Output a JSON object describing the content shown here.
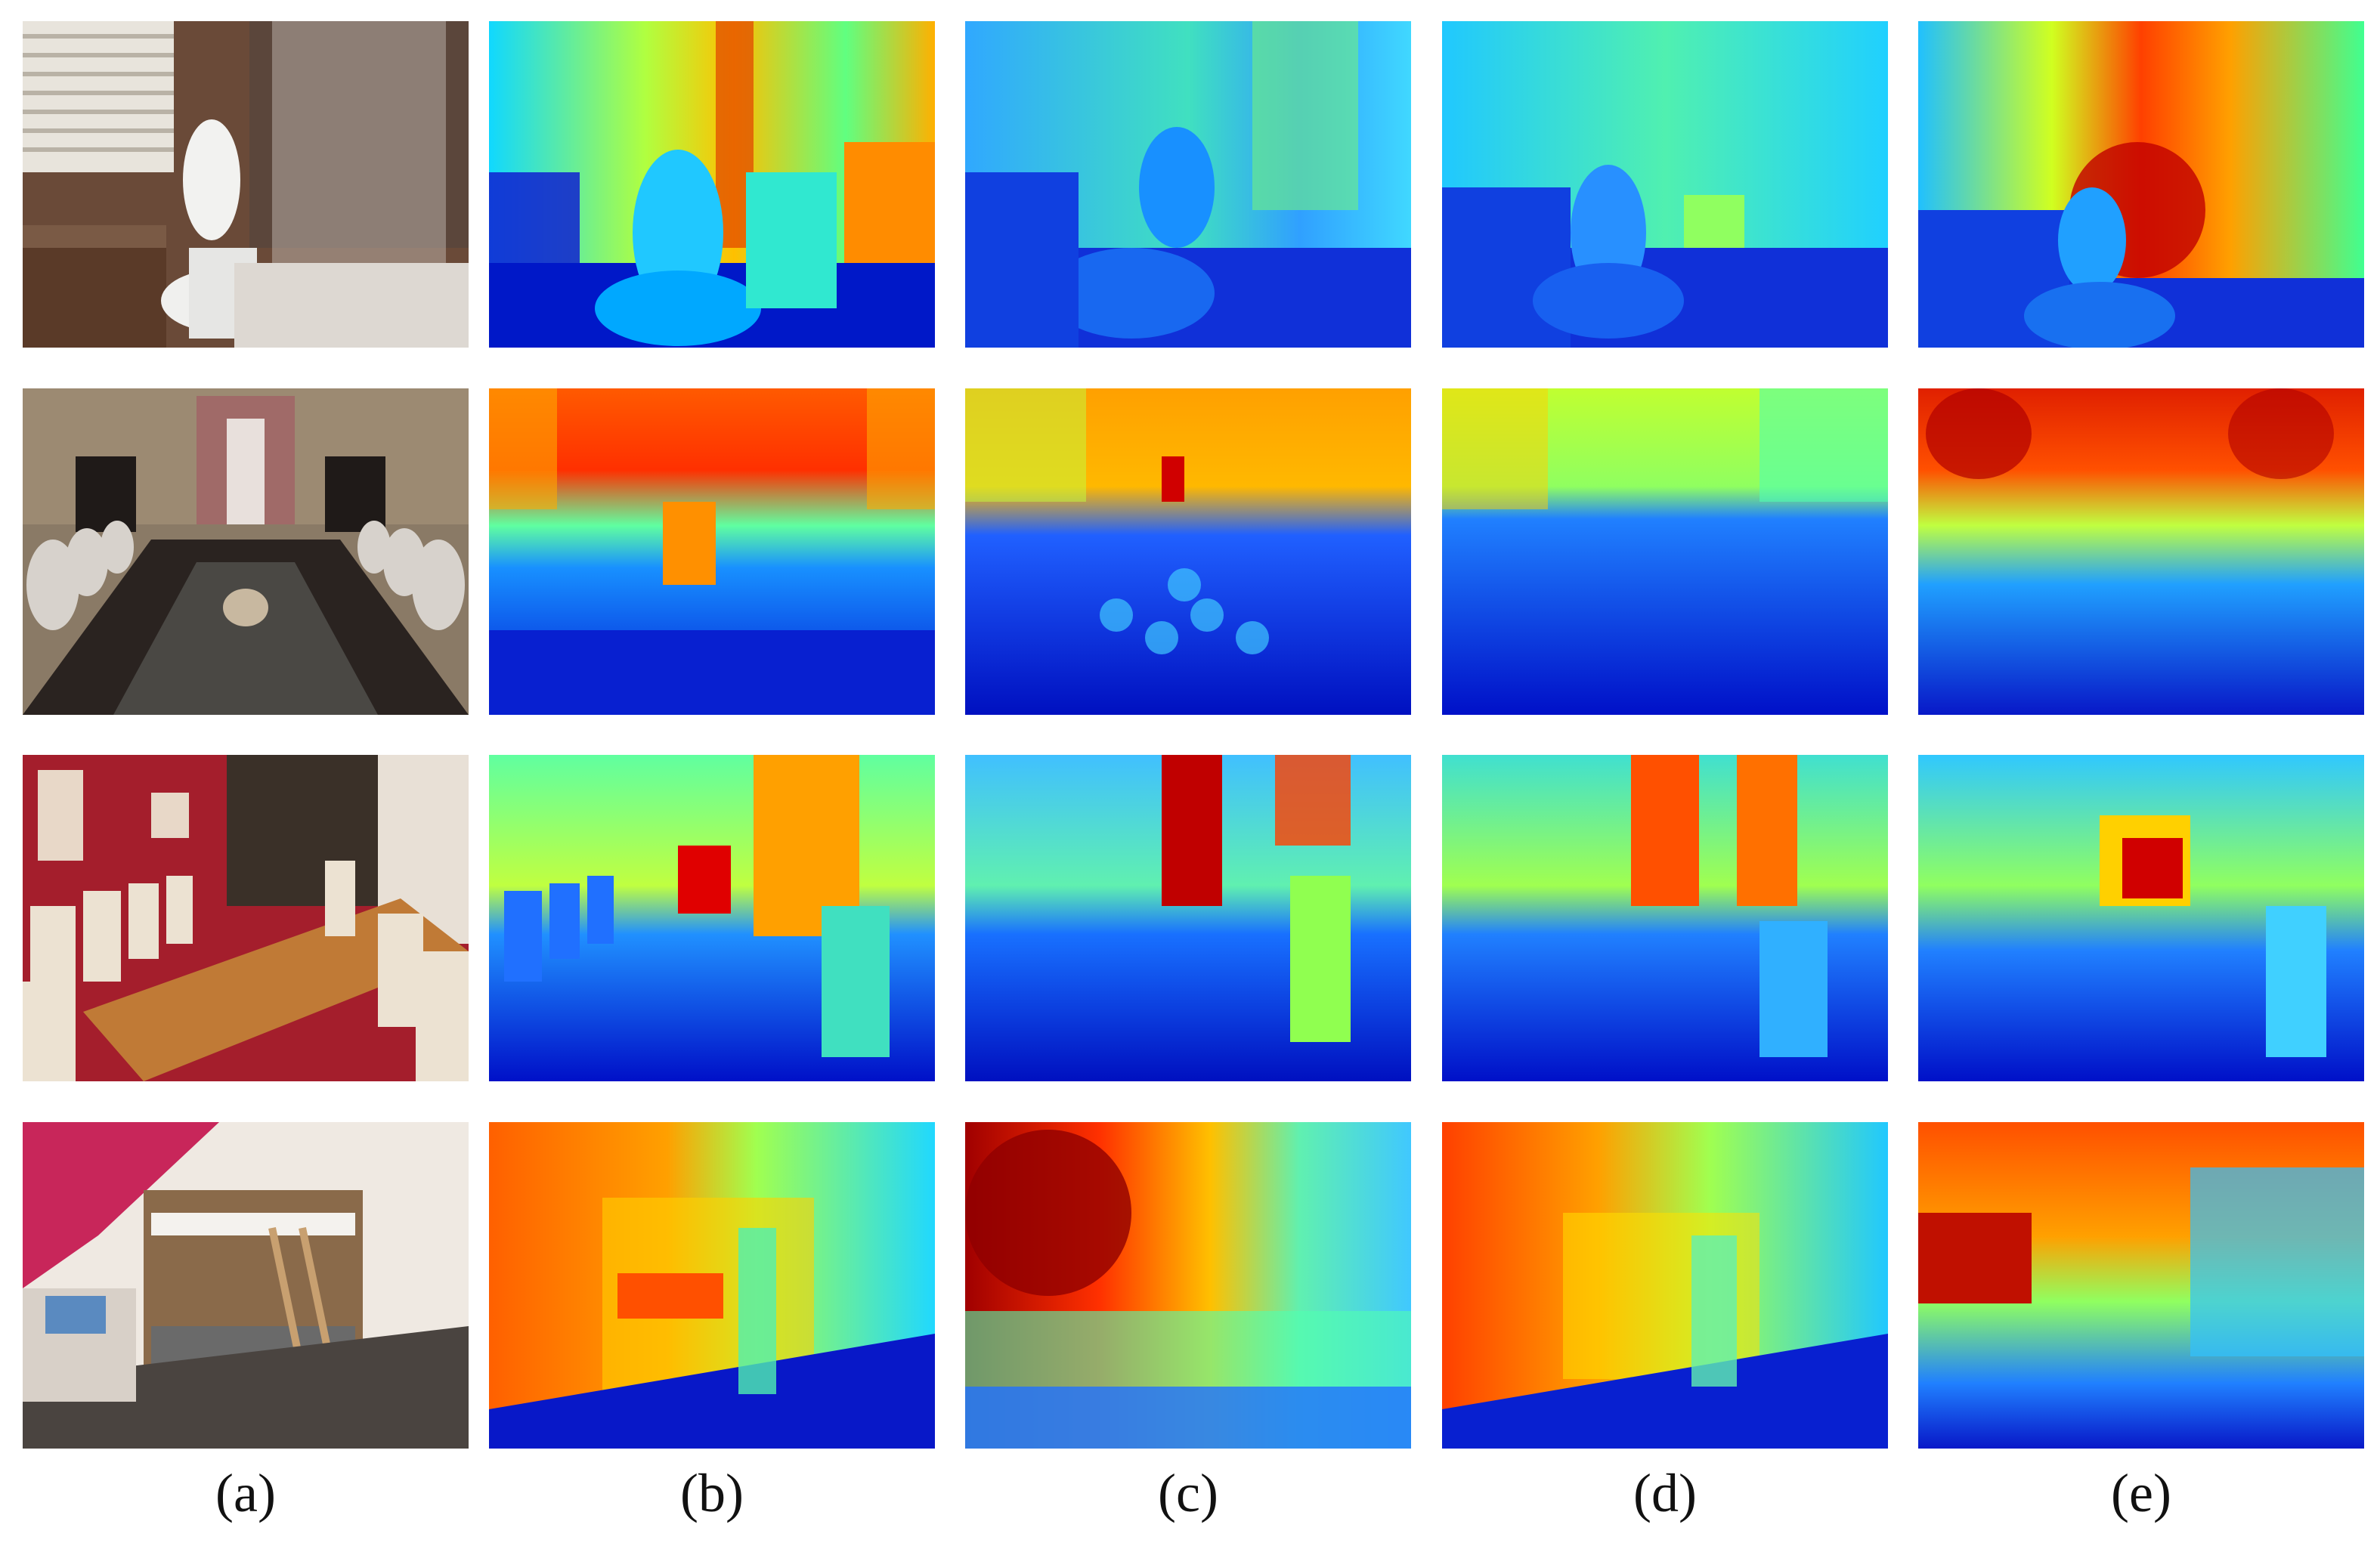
{
  "figure": {
    "column_labels": [
      "(a)",
      "(b)",
      "(c)",
      "(d)",
      "(e)"
    ],
    "rows": [
      {
        "scene": "bathroom"
      },
      {
        "scene": "dining-room-long-table"
      },
      {
        "scene": "dining-room-red-walls"
      },
      {
        "scene": "bedroom-bunk-bed"
      }
    ],
    "colormap": [
      "#00008f",
      "#0000ff",
      "#0080ff",
      "#00ffff",
      "#80ff80",
      "#ffff00",
      "#ff8000",
      "#ff0000",
      "#800000"
    ]
  }
}
